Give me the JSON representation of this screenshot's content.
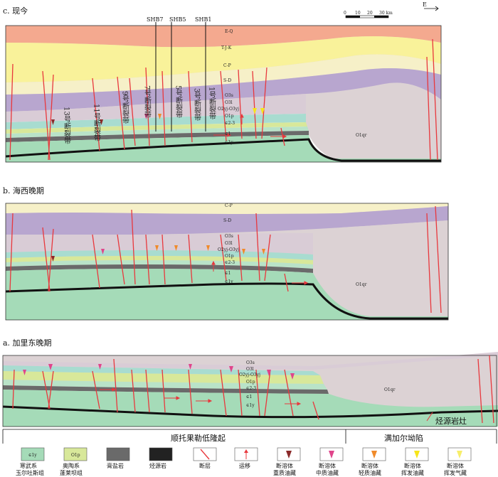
{
  "panel_c": {
    "title": "c. 现今",
    "wells": [
      "SHB7",
      "SHB5",
      "SHB1"
    ],
    "layers": [
      "E-Q",
      "T-J-K",
      "C-P",
      "S-D",
      "O3s",
      "O3l",
      "O2yj-O3yj",
      "O1p",
      "∈2-3",
      "∈1",
      "∈1y",
      "O1qr"
    ],
    "fault_zones": [
      "13号断裂带",
      "11号断裂带",
      "9号断裂带",
      "7号断裂带",
      "5号断裂带",
      "3号断裂带",
      "1号断裂带"
    ],
    "scale_ticks": [
      "0",
      "10",
      "20",
      "30 km"
    ],
    "north": "E"
  },
  "panel_b": {
    "title": "b. 海西晚期",
    "layers": [
      "C-P",
      "S-D",
      "O3s",
      "O3l",
      "O2yj-O3yj",
      "O1p",
      "∈2-3",
      "∈1",
      "∈1y",
      "O1qr"
    ]
  },
  "panel_a": {
    "title": "a. 加里东晚期",
    "layers": [
      "O3s",
      "O3l",
      "O2yj-O3yj",
      "O1p",
      "∈2-3",
      "∈1",
      "∈1y",
      "O1qr"
    ],
    "source_kitchen": "烃源岩灶"
  },
  "regions": [
    "顺托果勒低隆起",
    "满加尔坳陷"
  ],
  "legend": [
    {
      "symbol": "∈1y",
      "line1": "寒武系",
      "line2": "玉尔吐斯组"
    },
    {
      "symbol": "O1p",
      "line1": "奥陶系",
      "line2": "蓬莱坝组"
    },
    {
      "symbol": "",
      "line1": "膏盐岩",
      "line2": ""
    },
    {
      "symbol": "",
      "line1": "烃源岩",
      "line2": ""
    },
    {
      "symbol": "",
      "line1": "断层",
      "line2": ""
    },
    {
      "symbol": "",
      "line1": "运移",
      "line2": ""
    },
    {
      "symbol": "",
      "line1": "断溶体",
      "line2": "重质油藏"
    },
    {
      "symbol": "",
      "line1": "断溶体",
      "line2": "中质油藏"
    },
    {
      "symbol": "",
      "line1": "断溶体",
      "line2": "轻质油藏"
    },
    {
      "symbol": "",
      "line1": "断溶体",
      "line2": "挥发油藏"
    },
    {
      "symbol": "",
      "line1": "断溶体",
      "line2": "挥发气藏"
    }
  ],
  "colors": {
    "eq": "#f4a98f",
    "tjk": "#f9f29a",
    "cp": "#f6f0c8",
    "sd": "#b8a6cf",
    "os": "#d9ccd6",
    "ol": "#c9bdd2",
    "oyj": "#a8dcd0",
    "op": "#d8e89a",
    "cam23": "#b9e3c8",
    "salt": "#6a6a6a",
    "cam1": "#a5dbb8",
    "source": "#222222",
    "oqr": "#dcd2d4",
    "fault": "#e8383d",
    "oil_heavy": "#8b2a2a",
    "oil_medium": "#e0458b",
    "oil_light": "#f08a2a",
    "oil_volatile": "#f6e51a",
    "gas_volatile": "#f7ee6a"
  }
}
